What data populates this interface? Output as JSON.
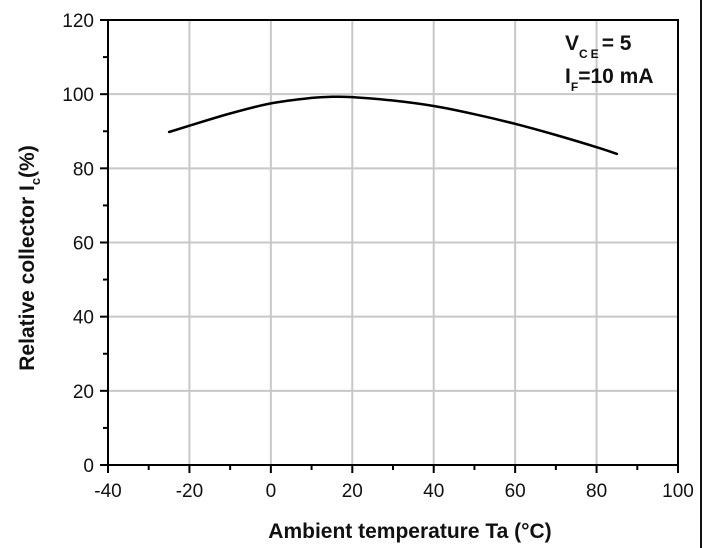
{
  "chart_data": {
    "type": "line",
    "xlabel": "Ambient temperature Ta (°C)",
    "ylabel_main": "Relative collector I",
    "ylabel_sub": "c",
    "ylabel_tail": "(%)",
    "xlim": [
      -40,
      100
    ],
    "ylim": [
      0,
      120
    ],
    "x_ticks": [
      -40,
      -20,
      0,
      20,
      40,
      60,
      80,
      100
    ],
    "y_ticks": [
      0,
      20,
      40,
      60,
      80,
      100,
      120
    ],
    "x_tick_labels": [
      "-40",
      "-20",
      "0",
      "20",
      "40",
      "60",
      "80",
      "100"
    ],
    "y_tick_labels": [
      "0",
      "20",
      "40",
      "60",
      "80",
      "100",
      "120"
    ],
    "grid": true,
    "series": [
      {
        "color": "#000000",
        "x": [
          -25,
          -20,
          -10,
          0,
          10,
          15,
          20,
          30,
          40,
          50,
          60,
          70,
          80,
          85
        ],
        "y": [
          89.8,
          91.5,
          94.8,
          97.5,
          99.0,
          99.3,
          99.2,
          98.3,
          96.8,
          94.6,
          92.0,
          89.0,
          85.7,
          83.9
        ]
      }
    ],
    "annotations": {
      "vce_main": "V",
      "vce_sub": "CE",
      "vce_value": "= 5",
      "if_main": "I",
      "if_sub": "F",
      "if_value": "=10 mA"
    }
  }
}
